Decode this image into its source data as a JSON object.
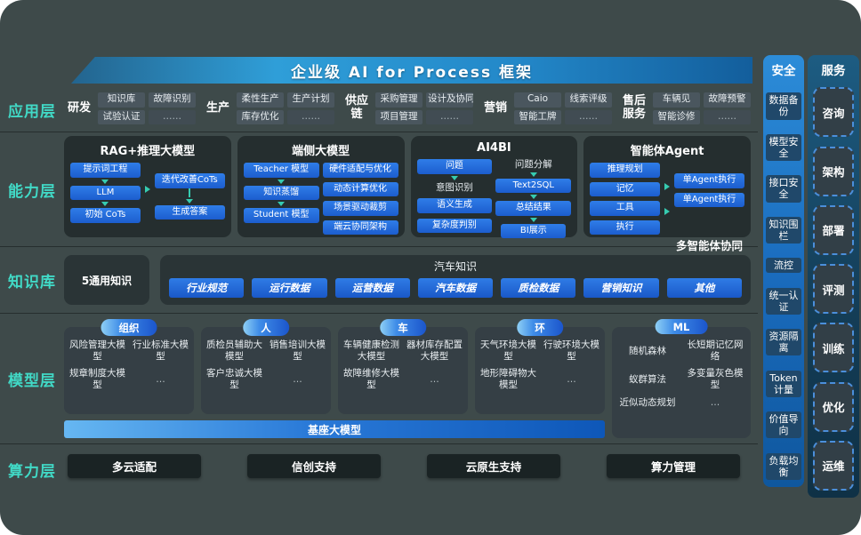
{
  "banner": {
    "title": "企业级 AI for Process 框架"
  },
  "layers": {
    "application": "应用层",
    "capability": "能力层",
    "knowledge": "知识库",
    "model": "模型层",
    "compute": "算力层"
  },
  "application": {
    "groups": [
      {
        "name": "研发",
        "items": [
          "知识库",
          "试验认证",
          "故障识别",
          "……"
        ]
      },
      {
        "name": "生产",
        "items": [
          "柔性生产",
          "库存优化",
          "生产计划",
          "……"
        ]
      },
      {
        "name": "供应链",
        "items": [
          "采购管理",
          "项目管理",
          "设计及协同",
          "……"
        ]
      },
      {
        "name": "营销",
        "items": [
          "Caio",
          "智能工牌",
          "线索评级",
          "……"
        ]
      },
      {
        "name": "售后服务",
        "items": [
          "车辆见",
          "智能诊修",
          "故障预警",
          "……"
        ]
      }
    ]
  },
  "capability": {
    "rag": {
      "title": "RAG+推理大模型",
      "steps_left": [
        "提示词工程",
        "LLM",
        "初始 CoTs"
      ],
      "steps_right": [
        "迭代改善CoTs",
        "生成答案"
      ]
    },
    "edge": {
      "title": "端侧大模型",
      "steps_left": [
        "Teacher 模型",
        "知识蒸馏",
        "Student 模型"
      ],
      "list_right": [
        "硬件适配与优化",
        "动态计算优化",
        "场景驱动裁剪",
        "端云协同架构"
      ]
    },
    "ai4bi": {
      "title": "AI4BI",
      "left": [
        "问题",
        "意图识别",
        "语义生成",
        "复杂度判别"
      ],
      "right": [
        "问题分解",
        "Text2SQL",
        "总结结果",
        "BI展示"
      ]
    },
    "agent": {
      "title": "智能体Agent",
      "left": [
        "推理规划",
        "记忆",
        "工具",
        "执行"
      ],
      "right": [
        "单Agent执行",
        "单Agent执行"
      ],
      "footer": "多智能体协同"
    }
  },
  "knowledge": {
    "general": "5通用知识",
    "auto_title": "汽车知识",
    "chips": [
      "行业规范",
      "运行数据",
      "运营数据",
      "汽车数据",
      "质检数据",
      "营销知识",
      "其他"
    ]
  },
  "model": {
    "groups": [
      {
        "pill": "组织",
        "items": [
          "风险管理大模型",
          "行业标准大模型",
          "规章制度大模型",
          "…"
        ]
      },
      {
        "pill": "人",
        "items": [
          "质检员辅助大模型",
          "销售培训大模型",
          "客户忠诚大模型",
          "…"
        ]
      },
      {
        "pill": "车",
        "items": [
          "车辆健康检测大模型",
          "器材库存配置大模型",
          "故障维修大模型",
          "…"
        ]
      },
      {
        "pill": "环",
        "items": [
          "天气环境大模型",
          "行驶环境大模型",
          "地形障碍物大模型",
          "…"
        ]
      },
      {
        "pill": "ML",
        "items": [
          "随机森林",
          "长短期记忆网络",
          "蚁群算法",
          "多变量灰色模型",
          "近似动态规划",
          "…"
        ]
      }
    ],
    "base_bar": "基座大模型"
  },
  "compute": {
    "items": [
      "多云适配",
      "信创支持",
      "云原生支持",
      "算力管理"
    ]
  },
  "security": {
    "title": "安全",
    "items": [
      "数据备份",
      "模型安全",
      "接口安全",
      "知识围栏",
      "流控",
      "统一认证",
      "资源隔离",
      "Token计量",
      "价值导向",
      "负载均衡"
    ]
  },
  "service": {
    "title": "服务",
    "items": [
      "咨询",
      "架构",
      "部署",
      "评测",
      "训练",
      "优化",
      "运维"
    ]
  },
  "colors": {
    "background": "#3e4a4a",
    "layer_label_teal": "#41d9c6",
    "chip_blue": "#1f6fde",
    "banner_blue": "#2f9ed8",
    "security_blue": "#1a6cbe",
    "arrow_teal": "#36cbb0"
  }
}
